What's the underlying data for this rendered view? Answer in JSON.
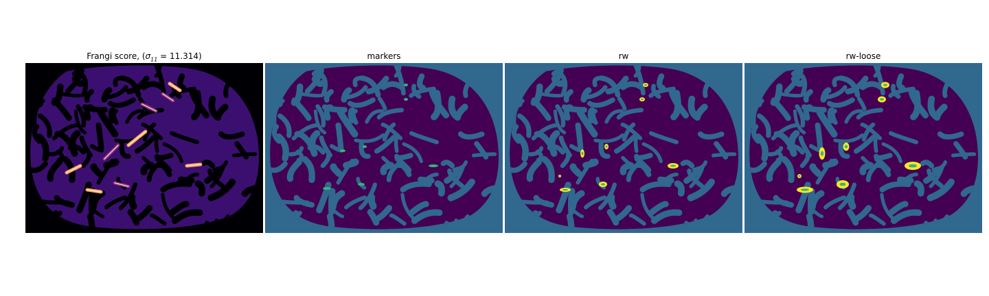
{
  "figure": {
    "panels": [
      {
        "id": "frangi",
        "title_prefix": "Frangi score, (",
        "title_sigma": "σ",
        "title_sub": "11",
        "title_suffix": " = 11.314)",
        "colormap": "magma"
      },
      {
        "id": "markers",
        "title": "markers",
        "colormap": "viridis"
      },
      {
        "id": "rw",
        "title": "rw",
        "colormap": "viridis"
      },
      {
        "id": "rw-loose",
        "title": "rw-loose",
        "colormap": "viridis"
      }
    ],
    "colors": {
      "magma_background": "#000004",
      "magma_low": "#3b0f70",
      "magma_mid": "#8c2981",
      "magma_high": "#fe9f6d",
      "magma_peak": "#fcfdbf",
      "viridis_background": "#31688e",
      "viridis_region": "#440154",
      "viridis_marker": "#35b779",
      "viridis_segment": "#fde725"
    }
  }
}
